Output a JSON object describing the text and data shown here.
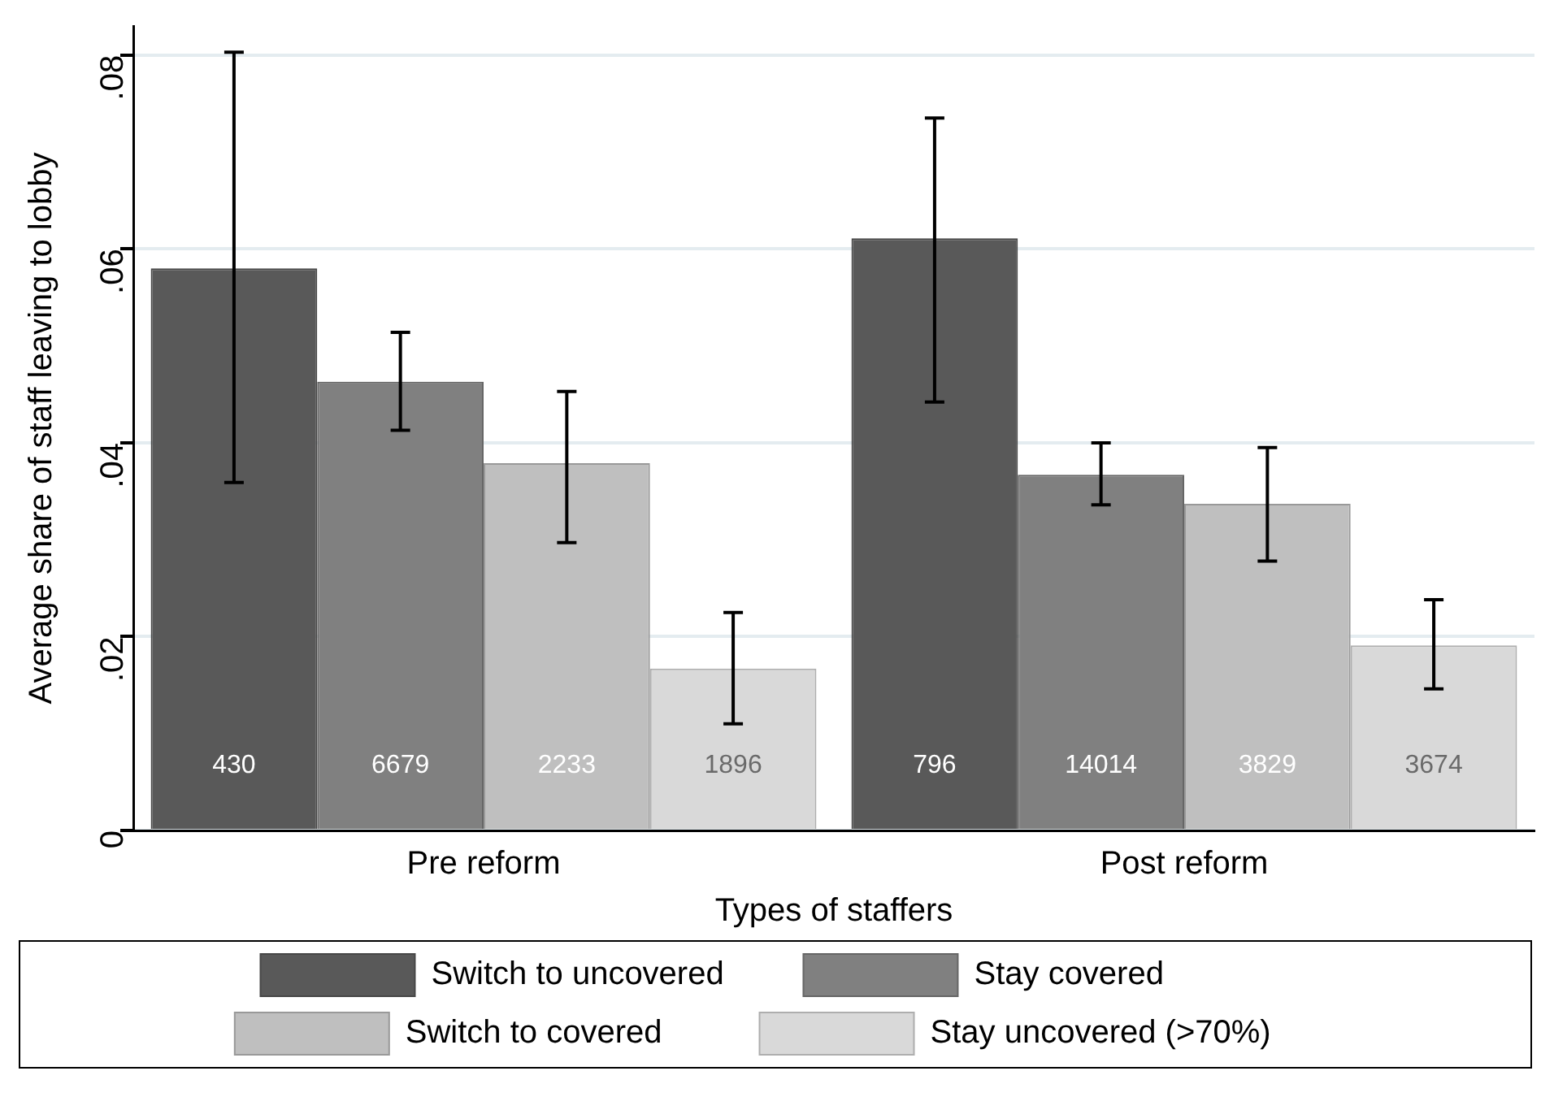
{
  "chart_data": {
    "type": "bar",
    "xlabel": "Types of staffers",
    "ylabel": "Average share of staff leaving to lobby",
    "categories": [
      "Pre reform",
      "Post reform"
    ],
    "series": [
      {
        "name": "Switch to uncovered",
        "color": "#595959",
        "values": [
          0.058,
          0.0611
        ],
        "errors": [
          [
            0.0359,
            0.0803
          ],
          [
            0.0442,
            0.0735
          ]
        ]
      },
      {
        "name": "Stay covered",
        "color": "#808080",
        "values": [
          0.0463,
          0.0367
        ],
        "errors": [
          [
            0.0413,
            0.0514
          ],
          [
            0.0336,
            0.04
          ]
        ]
      },
      {
        "name": "Switch to covered",
        "color": "#bfbfbf",
        "values": [
          0.0379,
          0.0337
        ],
        "errors": [
          [
            0.0297,
            0.0453
          ],
          [
            0.0278,
            0.0395
          ]
        ]
      },
      {
        "name": "Stay uncovered (>70%)",
        "color": "#d9d9d9",
        "values": [
          0.0167,
          0.0191
        ],
        "errors": [
          [
            0.011,
            0.0225
          ],
          [
            0.0146,
            0.0238
          ]
        ]
      }
    ],
    "annotations": [
      "430",
      "6679",
      "2233",
      "1896",
      "796",
      "14014",
      "3829",
      "3674"
    ],
    "ylim": [
      0,
      0.083
    ],
    "yticks": [
      {
        "value": 0,
        "label": "0"
      },
      {
        "value": 0.02,
        "label": ".02"
      },
      {
        "value": 0.04,
        "label": ".04"
      },
      {
        "value": 0.06,
        "label": ".06"
      },
      {
        "value": 0.08,
        "label": ".08"
      }
    ],
    "grid": "y",
    "legend": "bottom"
  }
}
